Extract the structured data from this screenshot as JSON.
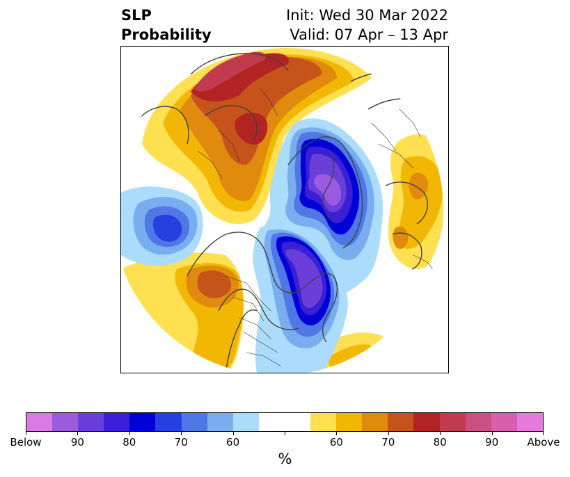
{
  "title": {
    "variable": "SLP",
    "metric": "Probability",
    "init": "Init: Wed 30 Mar 2022",
    "valid": "Valid: 07 Apr – 13 Apr"
  },
  "colorbar": {
    "colors": [
      "#d97ae6",
      "#9a5be0",
      "#6a3fd9",
      "#3a1fd6",
      "#0000d6",
      "#2540de",
      "#4f77e6",
      "#78aef0",
      "#abdcfb",
      "#ffffff",
      "#ffffff",
      "#ffe050",
      "#f2b705",
      "#e08a0e",
      "#c5531a",
      "#b22323",
      "#c23a4e",
      "#cc4f82",
      "#d95fae",
      "#e67add"
    ],
    "tick_labels": [
      "Below",
      "90",
      "80",
      "70",
      "60",
      "",
      "60",
      "70",
      "80",
      "90",
      "Above"
    ],
    "unit": "%"
  },
  "map": {
    "projection": "north-polar-stereographic",
    "category_colors": {
      "below_very_strong": "#9a5be0",
      "below_strong": "#3a1fd6",
      "below_moderate": "#2540de",
      "below_light": "#78aef0",
      "below_faint": "#abdcfb",
      "above_faint": "#ffe050",
      "above_light": "#f2b705",
      "above_moderate": "#e08a0e",
      "above_strong": "#c5531a",
      "above_very_strong": "#b22323",
      "above_extreme": "#c23a4e"
    }
  }
}
